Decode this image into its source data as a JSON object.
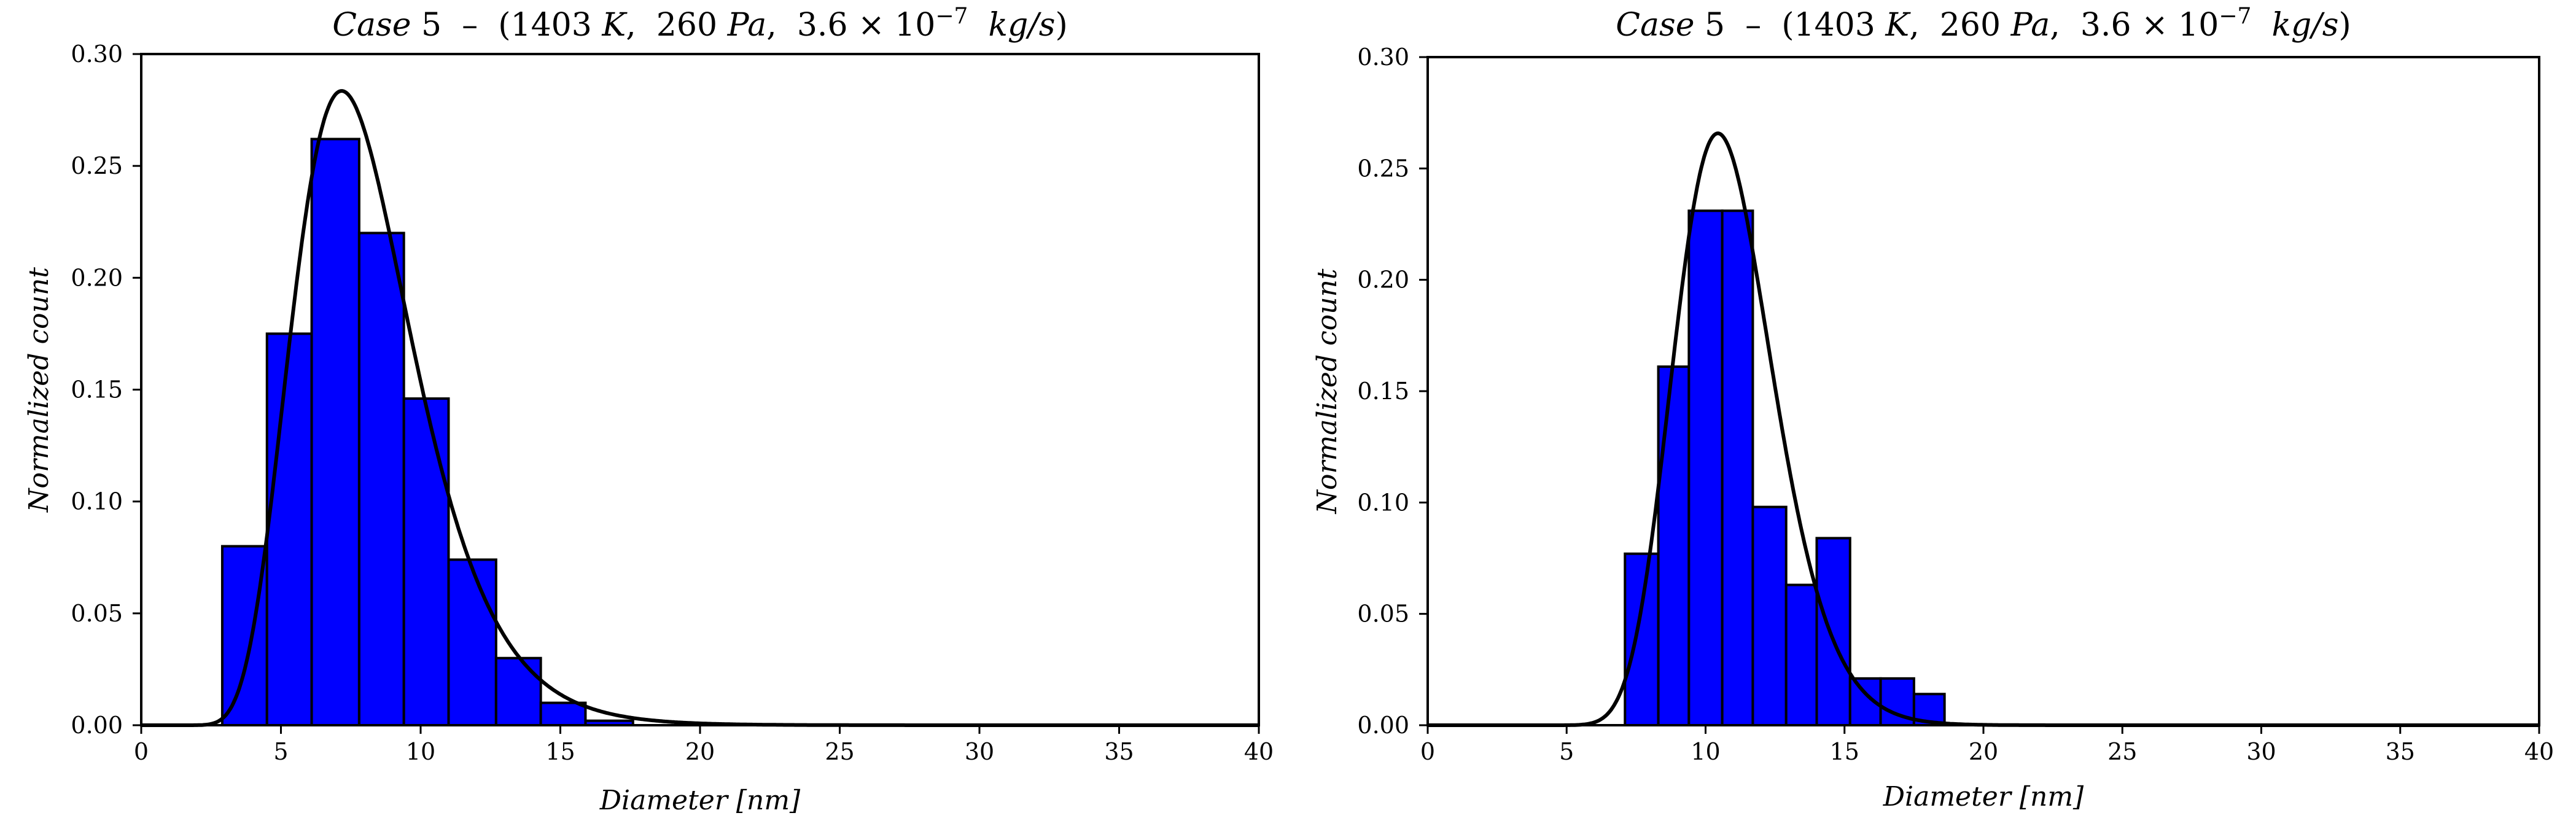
{
  "chart_data": [
    {
      "type": "bar",
      "title": "Case 5 – (1403 K, 260 Pa, 3.6 × 10^-7 kg/s)",
      "xlabel": "Diameter [nm]",
      "ylabel": "Normalized count",
      "xlim": [
        0,
        40
      ],
      "ylim": [
        0,
        0.3
      ],
      "xticks": [
        "0",
        "5",
        "10",
        "15",
        "20",
        "25",
        "30",
        "35",
        "40"
      ],
      "yticks": [
        "0.00",
        "0.05",
        "0.10",
        "0.15",
        "0.20",
        "0.25",
        "0.30"
      ],
      "grid": false,
      "bar_color": "#0000ff",
      "bins": [
        {
          "x0": 2.9,
          "x1": 4.5,
          "value": 0.08
        },
        {
          "x0": 4.5,
          "x1": 6.1,
          "value": 0.175
        },
        {
          "x0": 6.1,
          "x1": 7.8,
          "value": 0.262
        },
        {
          "x0": 7.8,
          "x1": 9.4,
          "value": 0.22
        },
        {
          "x0": 9.4,
          "x1": 11.0,
          "value": 0.146
        },
        {
          "x0": 11.0,
          "x1": 12.7,
          "value": 0.074
        },
        {
          "x0": 12.7,
          "x1": 14.3,
          "value": 0.03
        },
        {
          "x0": 14.3,
          "x1": 15.9,
          "value": 0.01
        },
        {
          "x0": 15.9,
          "x1": 17.6,
          "value": 0.002
        }
      ],
      "fit_curve": {
        "type": "lognormal",
        "median": 7.85,
        "sigma": 0.3,
        "color": "#000000"
      }
    },
    {
      "type": "bar",
      "title": "Case 5 – (1403 K, 260 Pa, 3.6 × 10^-7 kg/s)",
      "xlabel": "Diameter [nm]",
      "ylabel": "Normalized count",
      "xlim": [
        0,
        40
      ],
      "ylim": [
        0,
        0.3
      ],
      "xticks": [
        "0",
        "5",
        "10",
        "15",
        "20",
        "25",
        "30",
        "35",
        "40"
      ],
      "yticks": [
        "0.00",
        "0.05",
        "0.10",
        "0.15",
        "0.20",
        "0.25",
        "0.30"
      ],
      "grid": false,
      "bar_color": "#0000ff",
      "bins": [
        {
          "x0": 7.1,
          "x1": 8.3,
          "value": 0.077
        },
        {
          "x0": 8.3,
          "x1": 9.4,
          "value": 0.161
        },
        {
          "x0": 9.4,
          "x1": 10.6,
          "value": 0.231
        },
        {
          "x0": 10.6,
          "x1": 11.7,
          "value": 0.231
        },
        {
          "x0": 11.7,
          "x1": 12.9,
          "value": 0.098
        },
        {
          "x0": 12.9,
          "x1": 14.0,
          "value": 0.063
        },
        {
          "x0": 14.0,
          "x1": 15.2,
          "value": 0.084
        },
        {
          "x0": 15.2,
          "x1": 16.3,
          "value": 0.021
        },
        {
          "x0": 16.3,
          "x1": 17.5,
          "value": 0.021
        },
        {
          "x0": 17.5,
          "x1": 18.6,
          "value": 0.014
        }
      ],
      "fit_curve": {
        "type": "lognormal",
        "median": 10.75,
        "sigma": 0.17,
        "color": "#000000"
      }
    }
  ]
}
